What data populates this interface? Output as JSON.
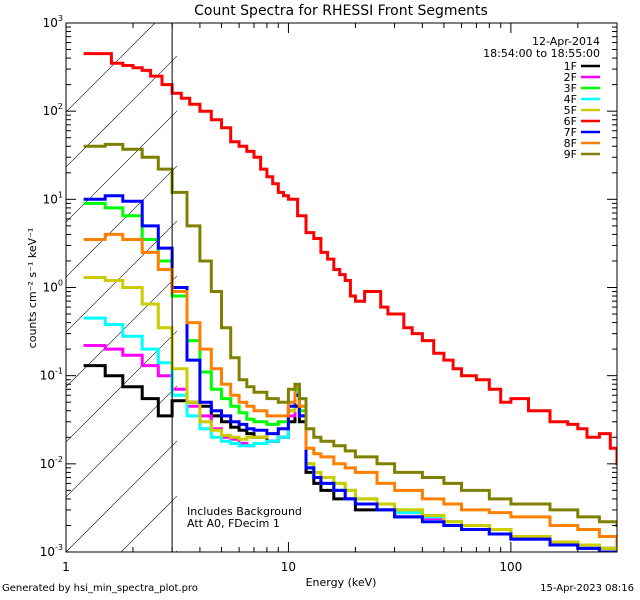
{
  "chart_data": {
    "type": "line",
    "title": "Count Spectra for RHESSI Front Segments",
    "xlabel": "Energy (keV)",
    "ylabel": "counts cm⁻² s⁻¹ keV⁻¹",
    "xscale": "log",
    "yscale": "log",
    "xlim": [
      1,
      300
    ],
    "ylim": [
      0.001,
      1000
    ],
    "x_tick_labels": [
      "1",
      "10",
      "100"
    ],
    "y_tick_labels": [
      {
        "base": "10",
        "exp": "-3"
      },
      {
        "base": "10",
        "exp": "-2"
      },
      {
        "base": "10",
        "exp": "-1"
      },
      {
        "base": "10",
        "exp": "0"
      },
      {
        "base": "10",
        "exp": "1"
      },
      {
        "base": "10",
        "exp": "2"
      },
      {
        "base": "10",
        "exp": "3"
      }
    ],
    "date": "12-Apr-2014",
    "time_range": "18:54:00 to 18:55:00",
    "annotations": [
      "Includes Background",
      "Att A0, FDecim 1"
    ],
    "shaded_region_max_energy_kev": 3,
    "series": [
      {
        "name": "1F",
        "color": "#000000",
        "x": [
          1.2,
          1.5,
          1.8,
          2.2,
          2.6,
          3.0,
          3.5,
          4.0,
          4.5,
          5.0,
          5.5,
          6.0,
          6.5,
          7.0,
          8.0,
          9.0,
          10.0,
          10.7,
          11.2,
          12,
          13,
          14,
          16,
          18,
          20,
          25,
          30,
          40,
          50,
          60,
          80,
          100,
          150,
          200,
          250,
          300
        ],
        "y": [
          0.13,
          0.1,
          0.075,
          0.055,
          0.035,
          0.052,
          0.05,
          0.045,
          0.035,
          0.03,
          0.026,
          0.024,
          0.022,
          0.02,
          0.018,
          0.02,
          0.03,
          0.045,
          0.03,
          0.008,
          0.006,
          0.005,
          0.004,
          0.004,
          0.003,
          0.003,
          0.0025,
          0.0025,
          0.002,
          0.002,
          0.0018,
          0.0015,
          0.0013,
          0.0012,
          0.0011,
          0.001
        ]
      },
      {
        "name": "2F",
        "color": "#ff00ff",
        "x": [
          1.2,
          1.5,
          1.8,
          2.2,
          2.6,
          3.0,
          3.5,
          4.0,
          4.5,
          5.0,
          5.5,
          6.0,
          6.5,
          7.0,
          8.0,
          9.0,
          10.0,
          10.7,
          11.2,
          12,
          13,
          14,
          16,
          18,
          20,
          25,
          30,
          40,
          50,
          60,
          80,
          100,
          150,
          200,
          250,
          300
        ],
        "y": [
          0.22,
          0.2,
          0.17,
          0.13,
          0.1,
          0.07,
          0.045,
          0.035,
          0.025,
          0.02,
          0.019,
          0.017,
          0.016,
          0.017,
          0.018,
          0.02,
          0.035,
          0.06,
          0.035,
          0.009,
          0.007,
          0.006,
          0.005,
          0.004,
          0.0035,
          0.003,
          0.0028,
          0.0024,
          0.002,
          0.0018,
          0.0016,
          0.0014,
          0.0012,
          0.0011,
          0.001,
          0.001
        ]
      },
      {
        "name": "3F",
        "color": "#00ff00",
        "x": [
          1.2,
          1.5,
          1.8,
          2.2,
          2.6,
          3.0,
          3.5,
          4.0,
          4.5,
          5.0,
          5.5,
          6.0,
          6.5,
          7.0,
          8.0,
          9.0,
          10.0,
          10.7,
          11.2,
          12,
          13,
          14,
          16,
          18,
          20,
          25,
          30,
          40,
          50,
          60,
          80,
          100,
          150,
          200,
          250,
          300
        ],
        "y": [
          9.0,
          8.0,
          6.5,
          3.5,
          2.0,
          0.8,
          0.25,
          0.11,
          0.07,
          0.055,
          0.045,
          0.038,
          0.032,
          0.03,
          0.028,
          0.03,
          0.05,
          0.07,
          0.04,
          0.01,
          0.008,
          0.007,
          0.006,
          0.005,
          0.004,
          0.0035,
          0.003,
          0.0025,
          0.0022,
          0.002,
          0.0018,
          0.0015,
          0.0013,
          0.0012,
          0.0011,
          0.001
        ]
      },
      {
        "name": "4F",
        "color": "#00ffff",
        "x": [
          1.2,
          1.5,
          1.8,
          2.2,
          2.6,
          3.0,
          3.5,
          4.0,
          4.5,
          5.0,
          5.5,
          6.0,
          6.5,
          7.0,
          8.0,
          9.0,
          10.0,
          10.7,
          11.2,
          12,
          13,
          14,
          16,
          18,
          20,
          25,
          30,
          40,
          50,
          60,
          80,
          100,
          150,
          200,
          250,
          300
        ],
        "y": [
          0.45,
          0.38,
          0.28,
          0.2,
          0.14,
          0.06,
          0.035,
          0.025,
          0.02,
          0.018,
          0.017,
          0.016,
          0.016,
          0.017,
          0.018,
          0.02,
          0.04,
          0.065,
          0.035,
          0.009,
          0.007,
          0.006,
          0.005,
          0.004,
          0.0035,
          0.003,
          0.0028,
          0.0025,
          0.002,
          0.0018,
          0.0016,
          0.0014,
          0.0012,
          0.0011,
          0.001,
          0.001
        ]
      },
      {
        "name": "5F",
        "color": "#cccc00",
        "x": [
          1.2,
          1.5,
          1.8,
          2.2,
          2.6,
          3.0,
          3.5,
          4.0,
          4.5,
          5.0,
          5.5,
          6.0,
          6.5,
          7.0,
          8.0,
          9.0,
          10.0,
          10.7,
          11.2,
          12,
          13,
          14,
          16,
          18,
          20,
          25,
          30,
          40,
          50,
          60,
          80,
          100,
          150,
          200,
          250,
          300
        ],
        "y": [
          1.3,
          1.2,
          1.0,
          0.65,
          0.35,
          0.12,
          0.05,
          0.03,
          0.024,
          0.021,
          0.02,
          0.019,
          0.02,
          0.02,
          0.022,
          0.025,
          0.04,
          0.06,
          0.035,
          0.01,
          0.008,
          0.007,
          0.006,
          0.005,
          0.004,
          0.0035,
          0.003,
          0.0026,
          0.0022,
          0.002,
          0.0018,
          0.0015,
          0.0013,
          0.0012,
          0.0011,
          0.001
        ]
      },
      {
        "name": "6F",
        "color": "#ff0000",
        "x": [
          1.2,
          1.4,
          1.6,
          1.8,
          2.0,
          2.2,
          2.4,
          2.7,
          3.0,
          3.3,
          3.6,
          4.0,
          4.5,
          5.0,
          5.5,
          6.0,
          6.5,
          7.0,
          7.5,
          8.0,
          8.5,
          9.0,
          9.5,
          10.0,
          11,
          12,
          13,
          14,
          15,
          16,
          17,
          18,
          19,
          20,
          22,
          24,
          26,
          28,
          30,
          33,
          36,
          40,
          45,
          50,
          55,
          60,
          70,
          80,
          90,
          100,
          120,
          150,
          180,
          200,
          220,
          250,
          280,
          300
        ],
        "y": [
          450,
          450,
          350,
          330,
          310,
          290,
          250,
          200,
          160,
          140,
          120,
          100,
          80,
          65,
          45,
          40,
          35,
          30,
          22,
          18,
          15,
          12,
          11,
          10,
          6.5,
          4.2,
          3.6,
          2.5,
          2.1,
          1.6,
          1.4,
          1.2,
          0.8,
          0.7,
          0.9,
          0.9,
          0.6,
          0.5,
          0.5,
          0.35,
          0.3,
          0.25,
          0.18,
          0.15,
          0.12,
          0.1,
          0.09,
          0.07,
          0.05,
          0.055,
          0.04,
          0.03,
          0.028,
          0.025,
          0.02,
          0.022,
          0.015,
          0.01
        ]
      },
      {
        "name": "7F",
        "color": "#0000ff",
        "x": [
          1.2,
          1.5,
          1.8,
          2.2,
          2.6,
          3.0,
          3.5,
          4.0,
          4.5,
          5.0,
          5.5,
          6.0,
          6.5,
          7.0,
          8.0,
          9.0,
          10.0,
          10.7,
          11.2,
          12,
          13,
          14,
          16,
          18,
          20,
          25,
          30,
          40,
          50,
          60,
          80,
          100,
          150,
          200,
          250,
          300
        ],
        "y": [
          10,
          11,
          9.5,
          5.0,
          2.8,
          1.0,
          0.15,
          0.05,
          0.04,
          0.035,
          0.03,
          0.028,
          0.025,
          0.024,
          0.022,
          0.025,
          0.045,
          0.06,
          0.035,
          0.009,
          0.007,
          0.006,
          0.005,
          0.004,
          0.0035,
          0.003,
          0.0025,
          0.0022,
          0.002,
          0.0018,
          0.0016,
          0.0014,
          0.0012,
          0.0011,
          0.001,
          0.001
        ]
      },
      {
        "name": "8F",
        "color": "#ff8000",
        "x": [
          1.2,
          1.5,
          1.8,
          2.2,
          2.6,
          3.0,
          3.5,
          4.0,
          4.5,
          5.0,
          5.5,
          6.0,
          6.5,
          7.0,
          8.0,
          9.0,
          10.0,
          10.7,
          11.2,
          12,
          13,
          14,
          16,
          18,
          20,
          25,
          30,
          40,
          50,
          60,
          80,
          100,
          150,
          200,
          250,
          300
        ],
        "y": [
          3.5,
          4.0,
          3.5,
          2.5,
          1.6,
          0.9,
          0.4,
          0.2,
          0.12,
          0.08,
          0.06,
          0.05,
          0.045,
          0.04,
          0.035,
          0.035,
          0.05,
          0.075,
          0.045,
          0.015,
          0.013,
          0.012,
          0.01,
          0.009,
          0.008,
          0.006,
          0.005,
          0.004,
          0.0035,
          0.003,
          0.0028,
          0.0025,
          0.002,
          0.0018,
          0.0015,
          0.0012
        ]
      },
      {
        "name": "9F",
        "color": "#808000",
        "x": [
          1.2,
          1.5,
          1.8,
          2.2,
          2.6,
          3.0,
          3.5,
          4.0,
          4.5,
          5.0,
          5.5,
          6.0,
          6.5,
          7.0,
          8.0,
          9.0,
          10.0,
          10.7,
          11.2,
          12,
          13,
          14,
          16,
          18,
          20,
          25,
          30,
          40,
          50,
          60,
          80,
          100,
          150,
          200,
          250,
          300
        ],
        "y": [
          40,
          42,
          37,
          30,
          22,
          12,
          5.0,
          2.0,
          0.9,
          0.35,
          0.16,
          0.09,
          0.075,
          0.065,
          0.055,
          0.05,
          0.07,
          0.08,
          0.055,
          0.025,
          0.02,
          0.018,
          0.016,
          0.014,
          0.012,
          0.01,
          0.008,
          0.007,
          0.006,
          0.005,
          0.004,
          0.0035,
          0.003,
          0.0025,
          0.0022,
          0.002
        ]
      }
    ]
  },
  "footer": {
    "generated_by": "Generated by hsi_min_spectra_plot.pro",
    "timestamp": "15-Apr-2023 08:16"
  }
}
